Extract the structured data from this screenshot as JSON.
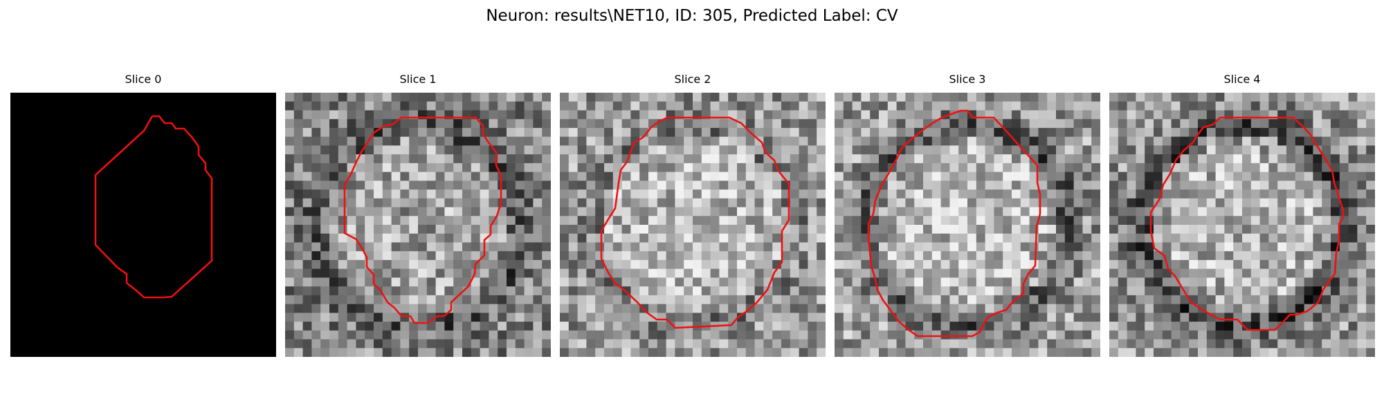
{
  "figure": {
    "title": "Neuron: results\\NET10, ID: 305, Predicted Label: CV"
  },
  "slices": [
    {
      "title": "Slice 0",
      "seed": 3,
      "brightness": 0.0,
      "dark_ring": 0.0
    },
    {
      "title": "Slice 1",
      "seed": 17,
      "brightness": 0.52,
      "dark_ring": 0.18
    },
    {
      "title": "Slice 2",
      "seed": 29,
      "brightness": 0.6,
      "dark_ring": 0.1
    },
    {
      "title": "Slice 3",
      "seed": 41,
      "brightness": 0.62,
      "dark_ring": 0.28
    },
    {
      "title": "Slice 4",
      "seed": 53,
      "brightness": 0.58,
      "dark_ring": 0.3
    }
  ],
  "colors": {
    "contour": "#ee1111",
    "background": "#ffffff"
  }
}
